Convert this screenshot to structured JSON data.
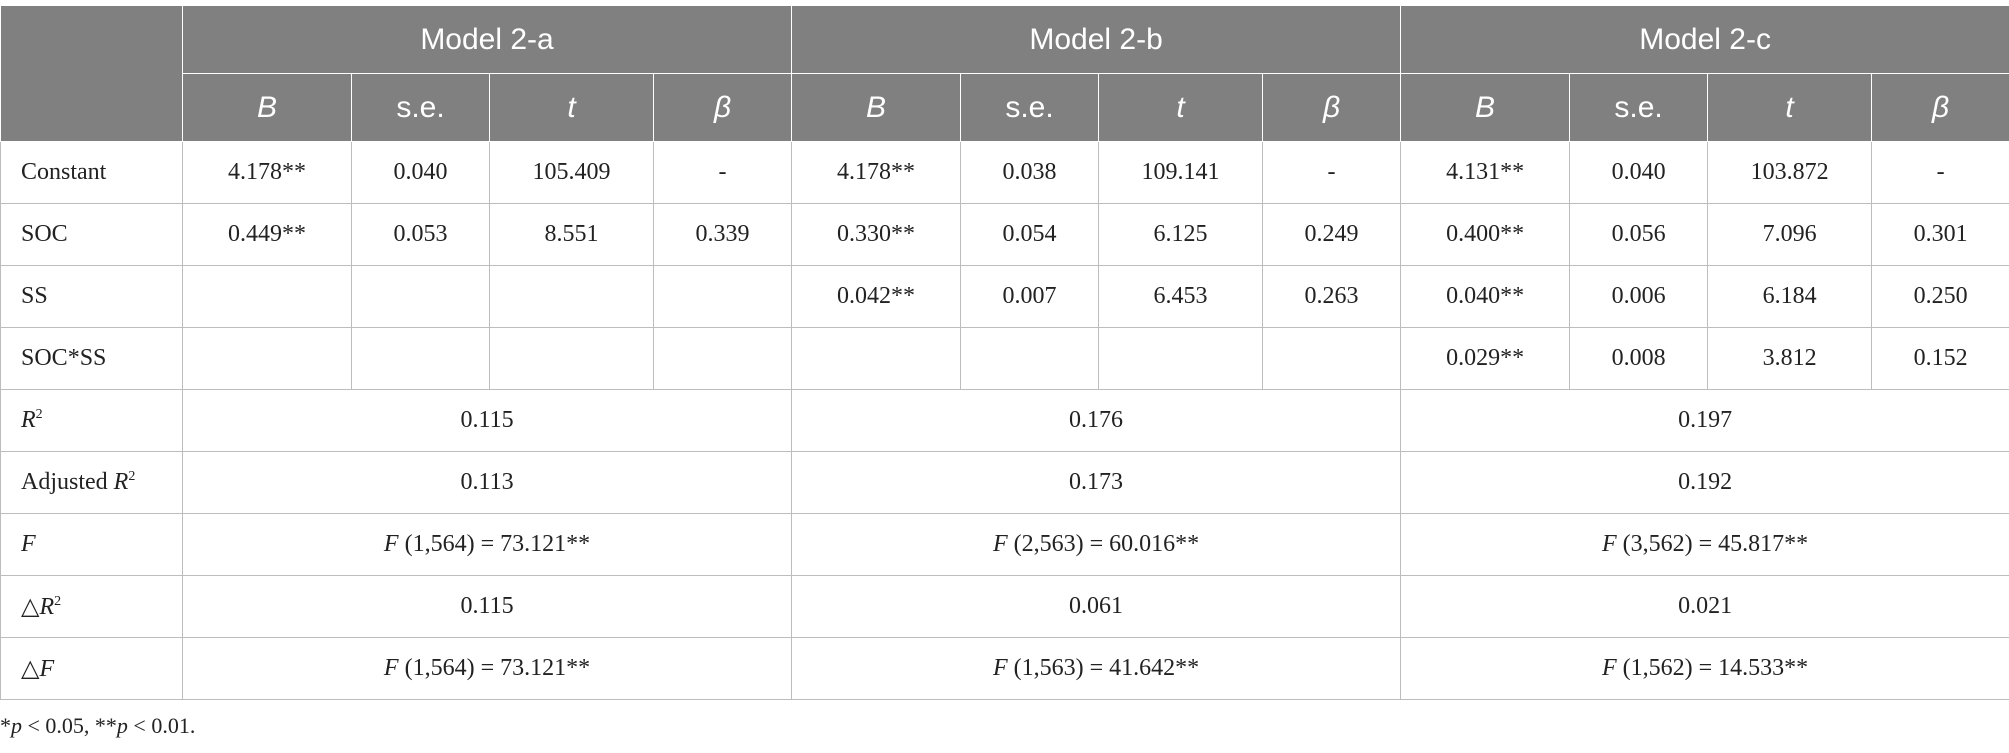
{
  "table": {
    "groups": [
      "Model 2-a",
      "Model 2-b",
      "Model 2-c"
    ],
    "columns": [
      "B",
      "s.e.",
      "t",
      "β"
    ],
    "rows": [
      {
        "label": "Constant",
        "cells": [
          [
            "4.178**",
            "0.040",
            "105.409",
            "-"
          ],
          [
            "4.178**",
            "0.038",
            "109.141",
            "-"
          ],
          [
            "4.131**",
            "0.040",
            "103.872",
            "-"
          ]
        ]
      },
      {
        "label": "SOC",
        "cells": [
          [
            "0.449**",
            "0.053",
            "8.551",
            "0.339"
          ],
          [
            "0.330**",
            "0.054",
            "6.125",
            "0.249"
          ],
          [
            "0.400**",
            "0.056",
            "7.096",
            "0.301"
          ]
        ]
      },
      {
        "label": "SS",
        "cells": [
          null,
          [
            "0.042**",
            "0.007",
            "6.453",
            "0.263"
          ],
          [
            "0.040**",
            "0.006",
            "6.184",
            "0.250"
          ]
        ]
      },
      {
        "label": "SOC*SS",
        "cells": [
          null,
          null,
          [
            "0.029**",
            "0.008",
            "3.812",
            "0.152"
          ]
        ]
      }
    ],
    "summary": [
      {
        "label": [
          "R",
          "2"
        ],
        "values": [
          [
            "0.115"
          ],
          [
            "0.176"
          ],
          [
            "0.197"
          ]
        ]
      },
      {
        "label": [
          "Adjusted ",
          "R",
          "2"
        ],
        "values": [
          [
            "0.113"
          ],
          [
            "0.173"
          ],
          [
            "0.192"
          ]
        ]
      },
      {
        "label": [
          "F"
        ],
        "values": [
          [
            "F",
            " (1,564) = 73.121**"
          ],
          [
            "F",
            " (2,563) = 60.016**"
          ],
          [
            "F",
            " (3,562) = 45.817**"
          ]
        ]
      },
      {
        "label": [
          "△",
          "R",
          "2"
        ],
        "values": [
          [
            "0.115"
          ],
          [
            "0.061"
          ],
          [
            "0.021"
          ]
        ]
      },
      {
        "label": [
          "△",
          "F"
        ],
        "values": [
          [
            "F",
            " (1,564) = 73.121**"
          ],
          [
            "F",
            " (1,563) = 41.642**"
          ],
          [
            "F",
            " (1,562) = 14.533**"
          ]
        ]
      }
    ]
  },
  "footnote": [
    "*",
    "p",
    " < 0.05, **",
    "p",
    " < 0.01."
  ]
}
